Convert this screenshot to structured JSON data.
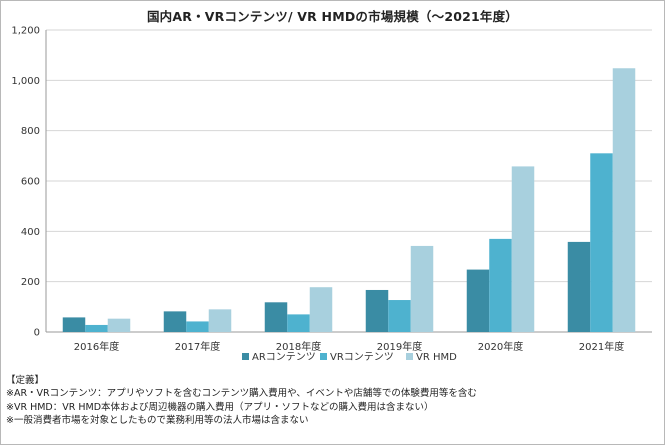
{
  "chart_data": {
    "type": "bar",
    "title": "国内AR・VRコンテンツ/ VR HMDの市場規模（～2021年度）",
    "categories": [
      "2016年度",
      "2017年度",
      "2018年度",
      "2019年度",
      "2020年度",
      "2021年度"
    ],
    "series": [
      {
        "name": "ARコンテンツ",
        "color": "#3a8ca4",
        "values": [
          58,
          82,
          118,
          167,
          248,
          358
        ]
      },
      {
        "name": "VRコンテンツ",
        "color": "#4eb2cf",
        "values": [
          28,
          42,
          70,
          127,
          370,
          710
        ]
      },
      {
        "name": "VR HMD",
        "color": "#a8d0de",
        "values": [
          53,
          90,
          178,
          342,
          658,
          1048
        ]
      }
    ],
    "ylim": [
      0,
      1200
    ],
    "yticks": [
      "0",
      "200",
      "400",
      "600",
      "800",
      "1,000",
      "1,200"
    ],
    "grid": true,
    "legend_position": "bottom"
  },
  "notes": {
    "heading": "【定義】",
    "lines": [
      "※AR・VRコンテンツ：アプリやソフトを含むコンテンツ購入費用や、イベントや店舗等での体験費用等を含む",
      "※VR HMD：VR HMD本体および周辺機器の購入費用（アプリ・ソフトなどの購入費用は含まない）",
      "※一般消費者市場を対象としたもので業務利用等の法人市場は含まない"
    ]
  }
}
